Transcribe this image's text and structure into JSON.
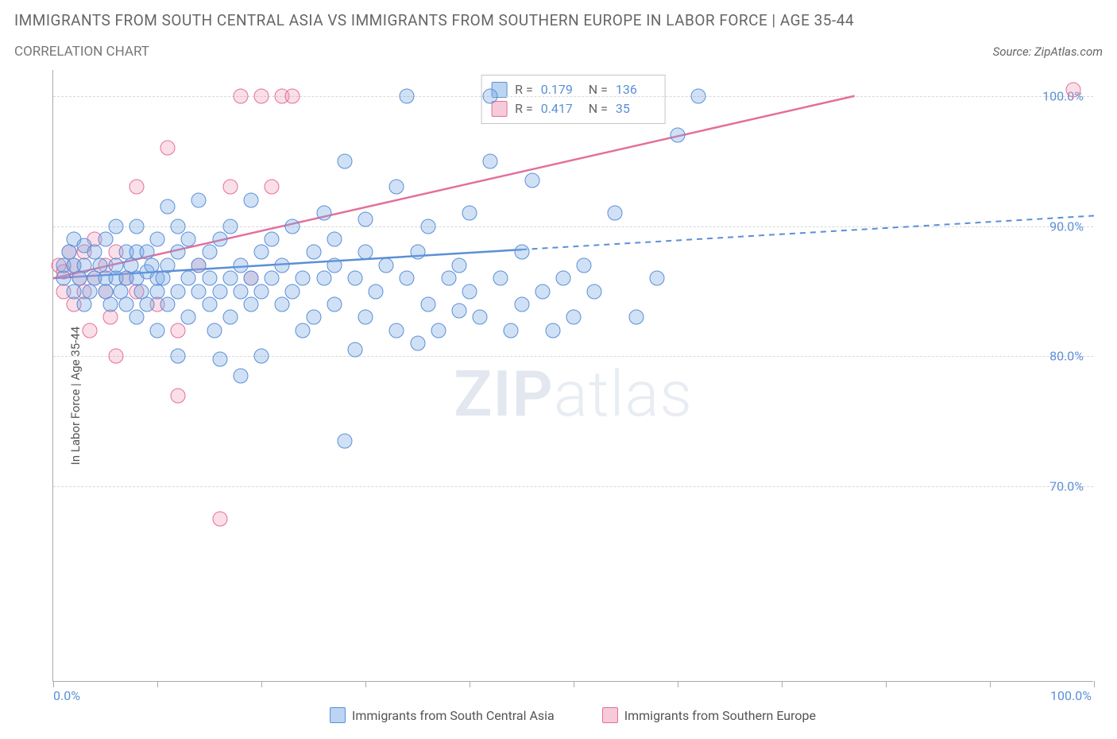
{
  "title": "IMMIGRANTS FROM SOUTH CENTRAL ASIA VS IMMIGRANTS FROM SOUTHERN EUROPE IN LABOR FORCE | AGE 35-44",
  "subtitle": "CORRELATION CHART",
  "source_prefix": "Source: ",
  "source": "ZipAtlas.com",
  "y_axis_label": "In Labor Force | Age 35-44",
  "watermark_bold": "ZIP",
  "watermark_rest": "atlas",
  "chart": {
    "type": "scatter",
    "xlim": [
      0,
      100
    ],
    "ylim": [
      55,
      102
    ],
    "y_ticks": [
      70,
      80,
      90,
      100
    ],
    "y_tick_labels": [
      "70.0%",
      "80.0%",
      "90.0%",
      "100.0%"
    ],
    "x_ticks": [
      0,
      10,
      20,
      30,
      40,
      50,
      60,
      70,
      80,
      90,
      100
    ],
    "x_tick_labels_shown": {
      "0": "0.0%",
      "100": "100.0%"
    },
    "background_color": "#ffffff",
    "grid_color": "#d8d8d8",
    "axis_color": "#aaaaaa",
    "marker_size": 17,
    "series": [
      {
        "name": "Immigrants from South Central Asia",
        "color_fill": "rgba(120,170,230,0.35)",
        "color_stroke": "#5b8fd6",
        "R": "0.179",
        "N": "136",
        "trend": {
          "x1": 0,
          "y1": 86,
          "x2_solid": 45,
          "y2_solid": 88.2,
          "x2": 100,
          "y2": 90.8,
          "stroke_width": 2.5
        },
        "points": [
          [
            1,
            86
          ],
          [
            1,
            87
          ],
          [
            1.5,
            88
          ],
          [
            2,
            85
          ],
          [
            2,
            87
          ],
          [
            2,
            89
          ],
          [
            2.5,
            86
          ],
          [
            3,
            84
          ],
          [
            3,
            87
          ],
          [
            3,
            88.5
          ],
          [
            3.5,
            85
          ],
          [
            4,
            86
          ],
          [
            4,
            88
          ],
          [
            4.5,
            87
          ],
          [
            5,
            85
          ],
          [
            5,
            86
          ],
          [
            5,
            89
          ],
          [
            5.5,
            84
          ],
          [
            6,
            86
          ],
          [
            6,
            87
          ],
          [
            6,
            90
          ],
          [
            6.5,
            85
          ],
          [
            7,
            86
          ],
          [
            7,
            88
          ],
          [
            7,
            84
          ],
          [
            7.5,
            87
          ],
          [
            8,
            83
          ],
          [
            8,
            86
          ],
          [
            8,
            88
          ],
          [
            8,
            90
          ],
          [
            8.5,
            85
          ],
          [
            9,
            86.5
          ],
          [
            9,
            84
          ],
          [
            9,
            88
          ],
          [
            9.5,
            87
          ],
          [
            10,
            85
          ],
          [
            10,
            86
          ],
          [
            10,
            89
          ],
          [
            10,
            82
          ],
          [
            10.5,
            86
          ],
          [
            11,
            91.5
          ],
          [
            11,
            84
          ],
          [
            11,
            87
          ],
          [
            12,
            80
          ],
          [
            12,
            85
          ],
          [
            12,
            88
          ],
          [
            12,
            90
          ],
          [
            13,
            86
          ],
          [
            13,
            83
          ],
          [
            13,
            89
          ],
          [
            14,
            85
          ],
          [
            14,
            87
          ],
          [
            14,
            92
          ],
          [
            15,
            84
          ],
          [
            15,
            86
          ],
          [
            15,
            88
          ],
          [
            15.5,
            82
          ],
          [
            16,
            85
          ],
          [
            16,
            89
          ],
          [
            16,
            79.8
          ],
          [
            17,
            86
          ],
          [
            17,
            83
          ],
          [
            17,
            90
          ],
          [
            18,
            85
          ],
          [
            18,
            87
          ],
          [
            18,
            78.5
          ],
          [
            19,
            86
          ],
          [
            19,
            84
          ],
          [
            19,
            92
          ],
          [
            20,
            85
          ],
          [
            20,
            88
          ],
          [
            20,
            80
          ],
          [
            21,
            86
          ],
          [
            21,
            89
          ],
          [
            22,
            84
          ],
          [
            22,
            87
          ],
          [
            23,
            85
          ],
          [
            23,
            90
          ],
          [
            24,
            82
          ],
          [
            24,
            86
          ],
          [
            25,
            88
          ],
          [
            25,
            83
          ],
          [
            26,
            86
          ],
          [
            26,
            91
          ],
          [
            27,
            84
          ],
          [
            27,
            87
          ],
          [
            27,
            89
          ],
          [
            28,
            95
          ],
          [
            28,
            73.5
          ],
          [
            29,
            80.5
          ],
          [
            29,
            86
          ],
          [
            30,
            83
          ],
          [
            30,
            88
          ],
          [
            30,
            90.5
          ],
          [
            31,
            85
          ],
          [
            32,
            87
          ],
          [
            33,
            93
          ],
          [
            33,
            82
          ],
          [
            34,
            86
          ],
          [
            34,
            100
          ],
          [
            35,
            81
          ],
          [
            35,
            88
          ],
          [
            36,
            84
          ],
          [
            36,
            90
          ],
          [
            37,
            82
          ],
          [
            38,
            86
          ],
          [
            39,
            83.5
          ],
          [
            39,
            87
          ],
          [
            40,
            85
          ],
          [
            40,
            91
          ],
          [
            41,
            83
          ],
          [
            42,
            95
          ],
          [
            42,
            100
          ],
          [
            43,
            86
          ],
          [
            44,
            82
          ],
          [
            45,
            84
          ],
          [
            45,
            88
          ],
          [
            46,
            93.5
          ],
          [
            47,
            85
          ],
          [
            48,
            82
          ],
          [
            49,
            86
          ],
          [
            50,
            83
          ],
          [
            51,
            87
          ],
          [
            52,
            85
          ],
          [
            54,
            91
          ],
          [
            56,
            83
          ],
          [
            58,
            86
          ],
          [
            60,
            97
          ],
          [
            62,
            100
          ]
        ]
      },
      {
        "name": "Immigrants from Southern Europe",
        "color_fill": "rgba(240,150,180,0.30)",
        "color_stroke": "#e36f9b",
        "R": "0.417",
        "N": "35",
        "trend": {
          "x1": 0,
          "y1": 86,
          "x2_solid": 77,
          "y2_solid": 100,
          "x2": 77,
          "y2": 100,
          "stroke_width": 2.5
        },
        "points": [
          [
            0.5,
            87
          ],
          [
            1,
            85
          ],
          [
            1,
            86.5
          ],
          [
            1.5,
            88
          ],
          [
            2,
            84
          ],
          [
            2,
            87
          ],
          [
            2.5,
            86
          ],
          [
            3,
            85
          ],
          [
            3,
            88
          ],
          [
            3.5,
            82
          ],
          [
            4,
            86
          ],
          [
            4,
            89
          ],
          [
            5,
            85
          ],
          [
            5,
            87
          ],
          [
            5.5,
            83
          ],
          [
            6,
            80
          ],
          [
            6,
            88
          ],
          [
            7,
            86
          ],
          [
            8,
            85
          ],
          [
            8,
            93
          ],
          [
            10,
            84
          ],
          [
            11,
            96
          ],
          [
            12,
            82
          ],
          [
            12,
            77
          ],
          [
            14,
            87
          ],
          [
            16,
            67.5
          ],
          [
            17,
            93
          ],
          [
            18,
            100
          ],
          [
            19,
            86
          ],
          [
            20,
            100
          ],
          [
            21,
            93
          ],
          [
            22,
            100
          ],
          [
            23,
            100
          ],
          [
            98,
            100.5
          ]
        ]
      }
    ]
  },
  "stats_labels": {
    "R": "R =",
    "N": "N ="
  },
  "legend": {
    "series_a": "Immigrants from South Central Asia",
    "series_b": "Immigrants from Southern Europe"
  }
}
